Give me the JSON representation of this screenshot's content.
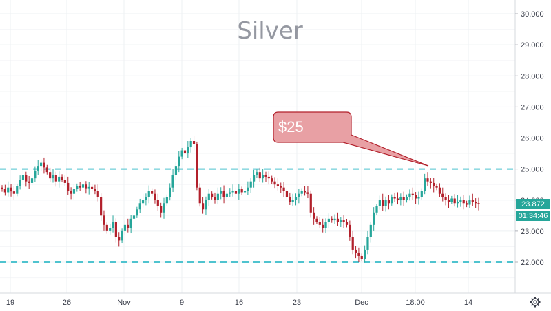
{
  "chart_data": {
    "type": "candlestick",
    "title": "Silver",
    "y_axis": {
      "position": "right",
      "range": [
        21.3,
        30.3
      ],
      "ticks": [
        "22.000",
        "23.000",
        "24.000",
        "25.000",
        "26.000",
        "27.000",
        "28.000",
        "29.000",
        "30.000"
      ],
      "tick_values": [
        22,
        23,
        24,
        25,
        26,
        27,
        28,
        29,
        30
      ]
    },
    "x_axis": {
      "labels": [
        "19",
        "26",
        "Nov",
        "9",
        "16",
        "23",
        "Dec",
        "18:00",
        "14"
      ]
    },
    "grid": true,
    "up_color": "#26a69a",
    "down_color": "#b2202b",
    "horizontal_levels": [
      {
        "value": 25.0,
        "style": "dashed",
        "color": "#4fc3cf"
      },
      {
        "value": 22.0,
        "style": "dashed",
        "color": "#4fc3cf"
      }
    ],
    "annotation": {
      "text": "$25",
      "points_to_value": 25.1,
      "fill": "#e8a0a4",
      "border": "#b2202b"
    },
    "last_price": {
      "value": 23.872,
      "label": "23.872",
      "color": "#26a69a"
    },
    "countdown": {
      "label": "01:34:46",
      "color": "#26a69a"
    },
    "closes": [
      24.35,
      24.25,
      24.4,
      24.28,
      24.2,
      24.45,
      24.65,
      24.8,
      24.6,
      24.55,
      24.7,
      24.95,
      25.1,
      25.2,
      25.05,
      24.9,
      24.7,
      24.8,
      24.6,
      24.75,
      24.65,
      24.55,
      24.3,
      24.2,
      24.35,
      24.45,
      24.4,
      24.5,
      24.38,
      24.42,
      24.35,
      24.3,
      24.1,
      23.5,
      23.2,
      23.0,
      23.1,
      23.3,
      22.8,
      22.7,
      23.0,
      23.2,
      23.1,
      23.4,
      23.5,
      23.7,
      23.9,
      24.0,
      24.1,
      24.3,
      24.2,
      24.0,
      23.8,
      23.6,
      23.9,
      24.1,
      24.4,
      24.8,
      25.1,
      25.4,
      25.6,
      25.5,
      25.7,
      25.9,
      25.8,
      24.4,
      23.9,
      23.7,
      24.0,
      24.2,
      24.1,
      24.0,
      24.2,
      24.3,
      24.1,
      24.2,
      24.25,
      24.3,
      24.2,
      24.35,
      24.25,
      24.3,
      24.4,
      24.6,
      24.8,
      24.9,
      24.7,
      24.8,
      24.75,
      24.7,
      24.6,
      24.5,
      24.45,
      24.4,
      24.3,
      24.1,
      23.95,
      24.0,
      24.1,
      24.2,
      24.3,
      24.25,
      24.2,
      23.6,
      23.4,
      23.3,
      23.2,
      23.1,
      23.3,
      23.4,
      23.35,
      23.4,
      23.3,
      23.35,
      23.3,
      23.2,
      22.8,
      22.4,
      22.3,
      22.2,
      22.1,
      22.4,
      22.8,
      23.2,
      23.6,
      23.8,
      24.0,
      23.8,
      24.0,
      23.9,
      24.1,
      24.05,
      24.0,
      24.1,
      24.0,
      24.1,
      24.2,
      24.15,
      24.05,
      24.1,
      24.3,
      24.7,
      24.6,
      24.55,
      24.45,
      24.4,
      24.2,
      24.1,
      24.0,
      23.95,
      24.05,
      23.9,
      23.95,
      24.0,
      23.9,
      23.85,
      24.0,
      23.95,
      23.9,
      23.87
    ]
  }
}
